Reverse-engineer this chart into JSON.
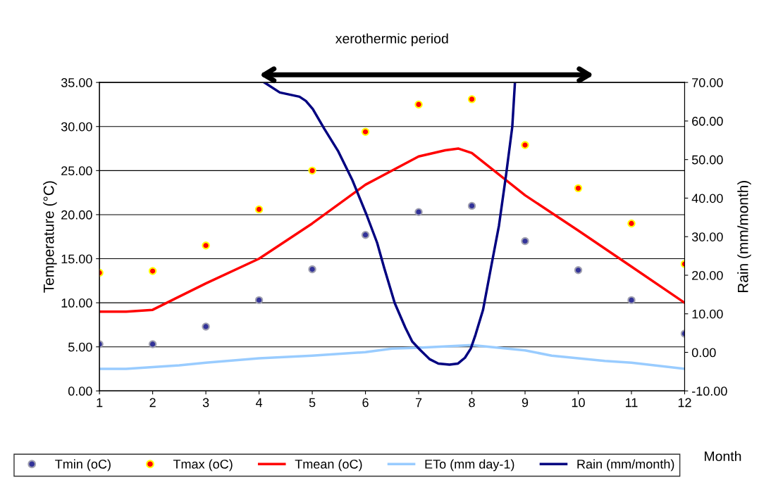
{
  "chart_data": {
    "type": "line",
    "title": "xerothermic period",
    "xlabel": "Month",
    "ylabel": "Temperature (°C)",
    "y2label": "Rain (mm/month)",
    "x": [
      1,
      2,
      3,
      4,
      5,
      6,
      7,
      8,
      9,
      10,
      11,
      12
    ],
    "xlim": [
      1,
      12
    ],
    "xticks": [
      1,
      2,
      3,
      4,
      5,
      6,
      7,
      8,
      9,
      10,
      11,
      12
    ],
    "ylim": [
      0,
      35
    ],
    "yticks": [
      {
        "value": 0,
        "label": "0.00"
      },
      {
        "value": 5,
        "label": "5.00"
      },
      {
        "value": 10,
        "label": "10.00"
      },
      {
        "value": 15,
        "label": "15.00"
      },
      {
        "value": 20,
        "label": "20.00"
      },
      {
        "value": 25,
        "label": "25.00"
      },
      {
        "value": 30,
        "label": "30.00"
      },
      {
        "value": 35,
        "label": "35.00"
      }
    ],
    "y2lim": [
      -10,
      70
    ],
    "y2ticks": [
      {
        "value": -10,
        "label": "-10.00"
      },
      {
        "value": 0,
        "label": "0.00"
      },
      {
        "value": 10,
        "label": "10.00"
      },
      {
        "value": 20,
        "label": "20.00"
      },
      {
        "value": 30,
        "label": "30.00"
      },
      {
        "value": 40,
        "label": "40.00"
      },
      {
        "value": 50,
        "label": "50.00"
      },
      {
        "value": 60,
        "label": "60.00"
      },
      {
        "value": 70,
        "label": "70.00"
      }
    ],
    "grid": "y",
    "legend": "bottom",
    "series": [
      {
        "name": "Tmin (oC)",
        "type": "scatter",
        "marker": "circle",
        "color": "#333399",
        "values": [
          5.3,
          5.3,
          7.3,
          10.3,
          13.8,
          17.7,
          20.3,
          21.0,
          17.0,
          13.7,
          10.3,
          6.5
        ]
      },
      {
        "name": "Tmax (oC)",
        "type": "scatter",
        "marker": "circle",
        "color": "#ff0000",
        "values": [
          13.4,
          13.6,
          16.5,
          20.6,
          25.0,
          29.4,
          32.5,
          33.1,
          27.9,
          23.0,
          19.0,
          14.4
        ]
      },
      {
        "name": "Tmean (oC)",
        "color": "#ff0000",
        "x": [
          1,
          1.5,
          2,
          3,
          4,
          5,
          6,
          7,
          7.5,
          7.75,
          8,
          9,
          10,
          11,
          12
        ],
        "values": [
          9.0,
          9.0,
          9.2,
          12.2,
          15.0,
          19.0,
          23.4,
          26.6,
          27.3,
          27.5,
          27.0,
          22.2,
          18.2,
          14.1,
          10.0
        ]
      },
      {
        "name": "ETo (mm day-1)",
        "color": "#99ccff",
        "x": [
          1,
          1.5,
          2,
          2.5,
          3,
          4,
          5,
          6,
          6.5,
          7,
          8,
          9,
          9.5,
          10,
          10.5,
          11,
          12
        ],
        "values": [
          2.5,
          2.5,
          2.7,
          2.9,
          3.2,
          3.7,
          4.0,
          4.4,
          4.8,
          4.9,
          5.2,
          4.6,
          4.0,
          3.7,
          3.4,
          3.2,
          2.5
        ]
      },
      {
        "name": "Rain (mm/month)",
        "axis": "y2",
        "color": "#000080",
        "x": [
          4.1,
          4.39,
          4.76,
          4.88,
          5.01,
          5.23,
          5.49,
          5.75,
          6.02,
          6.22,
          6.35,
          6.55,
          6.75,
          6.88,
          7.03,
          7.21,
          7.37,
          7.58,
          7.74,
          7.87,
          7.98,
          8.07,
          8.21,
          8.36,
          8.51,
          8.64,
          8.76,
          8.81
        ],
        "values": [
          70,
          67.4,
          66.3,
          65.2,
          63.1,
          57.9,
          52.1,
          44.8,
          35.7,
          28.4,
          22.0,
          12.8,
          6.4,
          2.8,
          0.6,
          -1.8,
          -2.9,
          -3.2,
          -2.9,
          -1.4,
          1.0,
          4.6,
          11.0,
          22.0,
          32.9,
          45.7,
          58.5,
          70
        ]
      }
    ]
  }
}
